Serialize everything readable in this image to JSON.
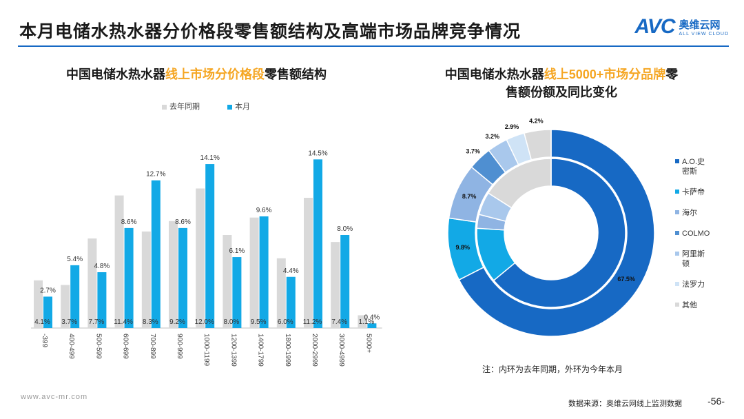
{
  "header": {
    "title": "本月电储水热水器分价格段零售额结构及高端市场品牌竞争情况",
    "logo_mark": "AVC",
    "logo_cn": "奥维云网",
    "logo_en": "ALL VIEW CLOUD"
  },
  "left_chart_title": {
    "a": "中国电储水热水器",
    "b": "线上市场分价格段",
    "c": "零售额结构"
  },
  "right_chart_title": {
    "a": "中国电储水热水器",
    "b": "线上5000+市场分品牌",
    "c": "零",
    "d": "售额份额及同比变化"
  },
  "note": "注：内环为去年同期，外环为今年本月",
  "footer": {
    "url": "www.avc-mr.com",
    "source": "数据来源：奥维云网线上监测数据",
    "page": "-56-"
  },
  "colors": {
    "prev": "#d9d9d9",
    "curr": "#12a9e6",
    "accent": "#f5a623",
    "brand": "#1769c4"
  },
  "chart_data": [
    {
      "type": "bar",
      "title": "中国电储水热水器线上市场分价格段零售额结构",
      "categories": [
        "-399",
        "400-499",
        "500-599",
        "600-699",
        "700-899",
        "900-999",
        "1000-1199",
        "1200-1399",
        "1400-1799",
        "1800-1999",
        "2000-2999",
        "3000-4999",
        "5000+"
      ],
      "series": [
        {
          "name": "去年同期",
          "values": [
            4.1,
            3.7,
            7.7,
            11.4,
            8.3,
            9.2,
            12.0,
            8.0,
            9.5,
            6.0,
            11.2,
            7.4,
            1.1
          ],
          "labels": [
            "4.1%",
            "3.7%",
            "7.7%",
            "11.4%",
            "8.3%",
            "9.2%",
            "12.0%",
            "8.0%",
            "9.5%",
            "6.0%",
            "11.2%",
            "7.4%",
            "1.1%"
          ]
        },
        {
          "name": "本月",
          "values": [
            2.7,
            5.4,
            4.8,
            8.6,
            12.7,
            8.6,
            14.1,
            6.1,
            9.6,
            4.4,
            14.5,
            8.0,
            0.4
          ],
          "labels": [
            "2.7%",
            "5.4%",
            "4.8%",
            "8.6%",
            "12.7%",
            "8.6%",
            "14.1%",
            "6.1%",
            "9.6%",
            "4.4%",
            "14.5%",
            "8.0%",
            "0.4%"
          ]
        }
      ],
      "ylim": [
        0,
        16
      ]
    },
    {
      "type": "pie",
      "title": "中国电储水热水器线上5000+市场分品牌零售额份额及同比变化",
      "categories": [
        "A.O.史密斯",
        "卡萨帝",
        "海尔",
        "COLMO",
        "阿里斯顿",
        "法罗力",
        "其他"
      ],
      "legend_labels": [
        "A.O.史\n密斯",
        "卡萨帝",
        "海尔",
        "COLMO",
        "阿里斯\n顿",
        "法罗力",
        "其他"
      ],
      "colors": [
        "#1769c4",
        "#12a9e6",
        "#8fb4e3",
        "#4f8fd1",
        "#a9c8ec",
        "#cfe3f6",
        "#d9d9d9"
      ],
      "outer": {
        "name": "今年本月",
        "values": [
          67.5,
          9.8,
          8.7,
          3.7,
          3.2,
          2.9,
          4.2
        ],
        "labels": [
          "67.5%",
          "9.8%",
          "8.7%",
          "3.7%",
          "3.2%",
          "2.9%",
          "4.2%"
        ]
      },
      "inner": {
        "name": "去年同期",
        "values": [
          64.0,
          12.0,
          3.0,
          0,
          5.0,
          0,
          16.0
        ]
      }
    }
  ]
}
